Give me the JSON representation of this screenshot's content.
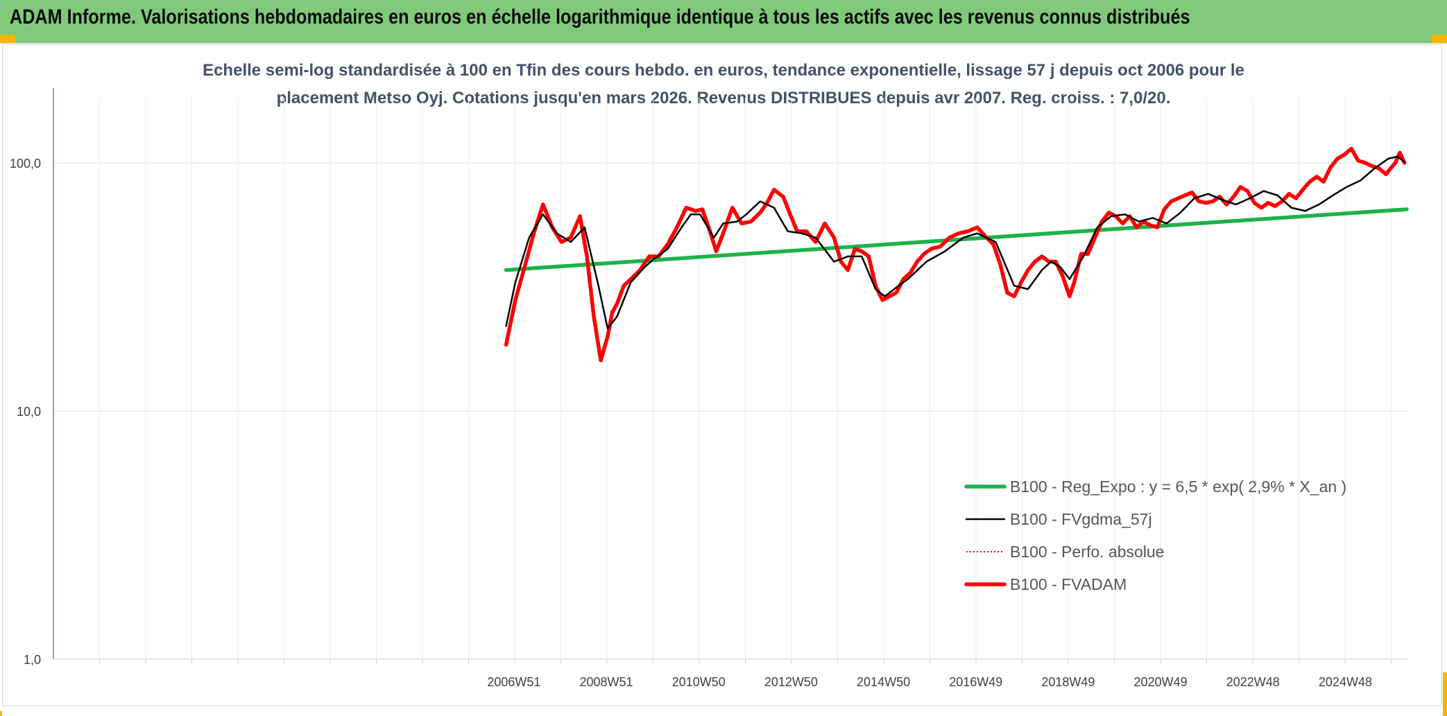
{
  "header": {
    "title": "ADAM Informe. Valorisations hebdomadaires en euros en échelle logarithmique identique à tous les actifs avec les revenus connus distribués",
    "background": "#80c97a"
  },
  "chart_data": {
    "type": "line",
    "title": "",
    "subtitle_lines": [
      "Echelle semi-log standardisée à 100 en Tfin des cours hebdo. en euros, tendance exponentielle, lissage 57 j depuis oct 2006 pour le",
      "placement Metso Oyj. Cotations jusqu'en mars 2026. Revenus DISTRIBUES depuis avr 2007. Reg. croiss. : 7,0/20."
    ],
    "xlabel": "",
    "ylabel": "",
    "y_scale": "log",
    "ylim": [
      1,
      100
    ],
    "y_ticks": [
      {
        "value": 100,
        "label": "100,0"
      },
      {
        "value": 10,
        "label": "10,0"
      },
      {
        "value": 1,
        "label": "1,0"
      }
    ],
    "xlim": [
      1997.0,
      2026.3
    ],
    "x_ticks": [
      {
        "label": "2006W51",
        "x": 2006.97
      },
      {
        "label": "2008W51",
        "x": 2008.97
      },
      {
        "label": "2010W50",
        "x": 2010.97
      },
      {
        "label": "2012W50",
        "x": 2012.97
      },
      {
        "label": "2014W50",
        "x": 2014.97
      },
      {
        "label": "2016W49",
        "x": 2016.97
      },
      {
        "label": "2018W49",
        "x": 2018.97
      },
      {
        "label": "2020W49",
        "x": 2020.97
      },
      {
        "label": "2022W48",
        "x": 2022.97
      },
      {
        "label": "2024W48",
        "x": 2024.97
      }
    ],
    "grid": true,
    "legend_position": "bottom-right",
    "series": [
      {
        "name": "B100 - Reg_Expo : y = 6,5 * exp( 2,9% *  X_an )",
        "color": "#1db24a",
        "style": "solid-thick",
        "x": [
          2006.8,
          2026.3
        ],
        "y": [
          37.0,
          65.0
        ]
      },
      {
        "name": "B100 - FVgdma_57j",
        "color": "#000000",
        "style": "solid-thin",
        "x": [
          2006.8,
          2007.0,
          2007.3,
          2007.6,
          2007.9,
          2008.2,
          2008.5,
          2008.8,
          2009.0,
          2009.2,
          2009.5,
          2009.8,
          2010.0,
          2010.3,
          2010.6,
          2010.8,
          2011.0,
          2011.3,
          2011.5,
          2011.8,
          2012.0,
          2012.3,
          2012.6,
          2012.9,
          2013.2,
          2013.5,
          2013.9,
          2014.2,
          2014.5,
          2014.8,
          2015.0,
          2015.3,
          2015.5,
          2015.9,
          2016.3,
          2016.7,
          2017.0,
          2017.4,
          2017.8,
          2018.1,
          2018.4,
          2018.6,
          2018.8,
          2019.0,
          2019.3,
          2019.6,
          2019.9,
          2020.2,
          2020.5,
          2020.8,
          2021.1,
          2021.4,
          2021.7,
          2022.0,
          2022.3,
          2022.6,
          2022.9,
          2023.2,
          2023.5,
          2023.8,
          2024.1,
          2024.4,
          2024.7,
          2025.0,
          2025.3,
          2025.6,
          2025.9,
          2026.1,
          2026.25
        ],
        "y": [
          22,
          33,
          50,
          62,
          52,
          48,
          55,
          32,
          21.5,
          24,
          33,
          38,
          41,
          45,
          55,
          62,
          62,
          50,
          57,
          58,
          62,
          70,
          66,
          53,
          52,
          50,
          40,
          42,
          42,
          31,
          29,
          32,
          34,
          40,
          44,
          50,
          52,
          48,
          32,
          31,
          37,
          40,
          38,
          34,
          42,
          55,
          61,
          62,
          58,
          60,
          57,
          63,
          72,
          75,
          71,
          68,
          72,
          77,
          74,
          66,
          64,
          68,
          74,
          80,
          85,
          95,
          104,
          106,
          101
        ]
      },
      {
        "name": "B100 - Perfo. absolue",
        "color": "#ff0000",
        "style": "dotted",
        "x": [
          2006.8,
          2007.0,
          2007.2,
          2007.4,
          2007.6,
          2007.8,
          2008.0,
          2008.2,
          2008.4,
          2008.55,
          2008.7,
          2008.85,
          2009.0,
          2009.1,
          2009.2,
          2009.35,
          2009.5,
          2009.7,
          2009.9,
          2010.1,
          2010.3,
          2010.5,
          2010.7,
          2010.9,
          2011.05,
          2011.2,
          2011.35,
          2011.5,
          2011.7,
          2011.9,
          2012.1,
          2012.3,
          2012.45,
          2012.6,
          2012.8,
          2012.95,
          2013.1,
          2013.3,
          2013.5,
          2013.7,
          2013.9,
          2014.05,
          2014.2,
          2014.35,
          2014.5,
          2014.65,
          2014.8,
          2014.95,
          2015.1,
          2015.25,
          2015.4,
          2015.55,
          2015.7,
          2015.85,
          2016.0,
          2016.2,
          2016.4,
          2016.6,
          2016.8,
          2017.0,
          2017.2,
          2017.35,
          2017.5,
          2017.65,
          2017.8,
          2017.95,
          2018.1,
          2018.25,
          2018.4,
          2018.55,
          2018.7,
          2018.85,
          2019.0,
          2019.1,
          2019.25,
          2019.4,
          2019.55,
          2019.7,
          2019.85,
          2020.0,
          2020.15,
          2020.3,
          2020.45,
          2020.6,
          2020.75,
          2020.9,
          2021.05,
          2021.2,
          2021.35,
          2021.5,
          2021.65,
          2021.8,
          2021.95,
          2022.1,
          2022.25,
          2022.4,
          2022.55,
          2022.7,
          2022.85,
          2023.0,
          2023.15,
          2023.3,
          2023.45,
          2023.6,
          2023.75,
          2023.9,
          2024.05,
          2024.2,
          2024.35,
          2024.5,
          2024.65,
          2024.8,
          2024.95,
          2025.1,
          2025.25,
          2025.4,
          2025.55,
          2025.7,
          2025.85,
          2025.95,
          2026.05,
          2026.15,
          2026.25
        ],
        "y": [
          18.5,
          28,
          38,
          52,
          68,
          55,
          48,
          50,
          61,
          42,
          24,
          16,
          20,
          25,
          27,
          32,
          34,
          37,
          42,
          42,
          47,
          55,
          66,
          64,
          65,
          54,
          44,
          52,
          66,
          57,
          58,
          63,
          69,
          78,
          73,
          62,
          53,
          53,
          48,
          57,
          50,
          40,
          37,
          45,
          44,
          42,
          32,
          28,
          29,
          30,
          34,
          36,
          40,
          43,
          45,
          46,
          50,
          52,
          53,
          55,
          50,
          47,
          39,
          30,
          29,
          33,
          37,
          40,
          42,
          40,
          40,
          35,
          29,
          33,
          43,
          43,
          50,
          58,
          63,
          61,
          57,
          61,
          55,
          58,
          56,
          55,
          65,
          70,
          72,
          74,
          76,
          70,
          69,
          70,
          73,
          68,
          73,
          80,
          77,
          69,
          66,
          69,
          67,
          70,
          75,
          72,
          78,
          84,
          88,
          84,
          96,
          104,
          108,
          114,
          102,
          100,
          97,
          95,
          90,
          95,
          100,
          110,
          100
        ]
      },
      {
        "name": "B100 - FVADAM",
        "color": "#ff0000",
        "style": "solid-thick",
        "x": [
          2006.8,
          2007.0,
          2007.2,
          2007.4,
          2007.6,
          2007.8,
          2008.0,
          2008.2,
          2008.4,
          2008.55,
          2008.7,
          2008.85,
          2009.0,
          2009.1,
          2009.2,
          2009.35,
          2009.5,
          2009.7,
          2009.9,
          2010.1,
          2010.3,
          2010.5,
          2010.7,
          2010.9,
          2011.05,
          2011.2,
          2011.35,
          2011.5,
          2011.7,
          2011.9,
          2012.1,
          2012.3,
          2012.45,
          2012.6,
          2012.8,
          2012.95,
          2013.1,
          2013.3,
          2013.5,
          2013.7,
          2013.9,
          2014.05,
          2014.2,
          2014.35,
          2014.5,
          2014.65,
          2014.8,
          2014.95,
          2015.1,
          2015.25,
          2015.4,
          2015.55,
          2015.7,
          2015.85,
          2016.0,
          2016.2,
          2016.4,
          2016.6,
          2016.8,
          2017.0,
          2017.2,
          2017.35,
          2017.5,
          2017.65,
          2017.8,
          2017.95,
          2018.1,
          2018.25,
          2018.4,
          2018.55,
          2018.7,
          2018.85,
          2019.0,
          2019.1,
          2019.25,
          2019.4,
          2019.55,
          2019.7,
          2019.85,
          2020.0,
          2020.15,
          2020.3,
          2020.45,
          2020.6,
          2020.75,
          2020.9,
          2021.05,
          2021.2,
          2021.35,
          2021.5,
          2021.65,
          2021.8,
          2021.95,
          2022.1,
          2022.25,
          2022.4,
          2022.55,
          2022.7,
          2022.85,
          2023.0,
          2023.15,
          2023.3,
          2023.45,
          2023.6,
          2023.75,
          2023.9,
          2024.05,
          2024.2,
          2024.35,
          2024.5,
          2024.65,
          2024.8,
          2024.95,
          2025.1,
          2025.25,
          2025.4,
          2025.55,
          2025.7,
          2025.85,
          2025.95,
          2026.05,
          2026.15,
          2026.25
        ],
        "y": [
          18.5,
          28,
          38,
          52,
          68,
          55,
          48,
          50,
          61,
          42,
          24,
          16,
          20,
          25,
          27,
          32,
          34,
          37,
          42,
          42,
          47,
          55,
          66,
          64,
          65,
          54,
          44,
          52,
          66,
          57,
          58,
          63,
          69,
          78,
          73,
          62,
          53,
          53,
          48,
          57,
          50,
          40,
          37,
          45,
          44,
          42,
          32,
          28,
          29,
          30,
          34,
          36,
          40,
          43,
          45,
          46,
          50,
          52,
          53,
          55,
          50,
          47,
          39,
          30,
          29,
          33,
          37,
          40,
          42,
          40,
          40,
          35,
          29,
          33,
          43,
          43,
          50,
          58,
          63,
          61,
          57,
          61,
          55,
          58,
          56,
          55,
          65,
          70,
          72,
          74,
          76,
          70,
          69,
          70,
          73,
          68,
          73,
          80,
          77,
          69,
          66,
          69,
          67,
          70,
          75,
          72,
          78,
          84,
          88,
          84,
          96,
          104,
          108,
          114,
          102,
          100,
          97,
          95,
          90,
          95,
          100,
          110,
          100
        ]
      }
    ]
  }
}
